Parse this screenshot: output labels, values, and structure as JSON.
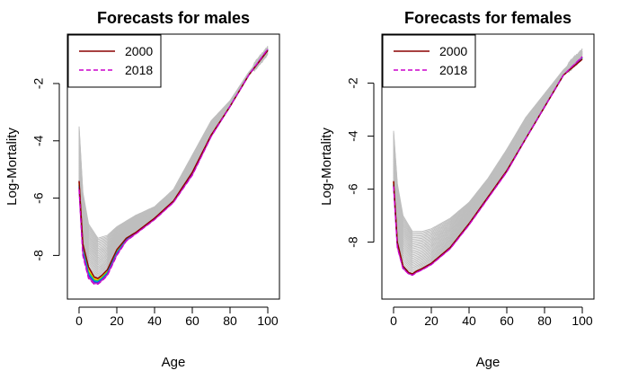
{
  "chart_data": [
    {
      "type": "line",
      "title": "Forecasts for males",
      "xlabel": "Age",
      "ylabel": "Log-Mortality",
      "xlim": [
        0,
        100
      ],
      "ylim": [
        -9.2,
        -0.6
      ],
      "xticks": [
        0,
        20,
        40,
        60,
        80,
        100
      ],
      "yticks": [
        -2,
        -4,
        -6,
        -8
      ],
      "grid": false,
      "legend": {
        "position": "top-left",
        "entries": [
          {
            "label": "2000",
            "color": "#8B0000",
            "dash": "solid"
          },
          {
            "label": "2018",
            "color": "#CC00CC",
            "dash": "dashed"
          }
        ]
      },
      "colors": {
        "history": "#BEBEBE"
      },
      "history_bands": {
        "note": "grey historical curves (earlier years, higher mortality at young ages)",
        "upper": {
          "x": [
            0,
            2,
            5,
            10,
            15,
            20,
            25,
            30,
            40,
            50,
            60,
            70,
            80,
            90,
            100
          ],
          "y": [
            -3.5,
            -5.8,
            -6.9,
            -7.4,
            -7.3,
            -7.0,
            -6.8,
            -6.6,
            -6.3,
            -5.7,
            -4.5,
            -3.3,
            -2.6,
            -1.6,
            -0.8
          ]
        },
        "lower": {
          "x": [
            0,
            2,
            5,
            10,
            15,
            20,
            25,
            30,
            40,
            50,
            60,
            70,
            80,
            90,
            100
          ],
          "y": [
            -5.4,
            -7.8,
            -8.5,
            -8.8,
            -8.5,
            -7.8,
            -7.4,
            -7.2,
            -6.7,
            -6.1,
            -5.1,
            -3.8,
            -2.8,
            -1.7,
            -0.9
          ]
        }
      },
      "series": [
        {
          "name": "2000",
          "x": [
            0,
            2,
            5,
            8,
            10,
            12,
            15,
            20,
            25,
            30,
            40,
            50,
            60,
            70,
            80,
            90,
            100
          ],
          "y": [
            -5.4,
            -7.6,
            -8.4,
            -8.75,
            -8.8,
            -8.7,
            -8.5,
            -7.8,
            -7.4,
            -7.2,
            -6.7,
            -6.1,
            -5.1,
            -3.8,
            -2.8,
            -1.7,
            -0.85
          ]
        },
        {
          "name": "2018",
          "x": [
            0,
            2,
            5,
            8,
            10,
            12,
            15,
            20,
            25,
            30,
            40,
            50,
            60,
            70,
            80,
            90,
            100
          ],
          "y": [
            -5.7,
            -8.0,
            -8.8,
            -9.0,
            -9.0,
            -8.9,
            -8.7,
            -8.0,
            -7.5,
            -7.25,
            -6.75,
            -6.15,
            -5.2,
            -3.85,
            -2.8,
            -1.7,
            -0.8
          ]
        }
      ]
    },
    {
      "type": "line",
      "title": "Forecasts for females",
      "xlabel": "Age",
      "ylabel": "Log-Mortality",
      "xlim": [
        0,
        100
      ],
      "ylim": [
        -9.8,
        -0.5
      ],
      "xticks": [
        0,
        20,
        40,
        60,
        80,
        100
      ],
      "yticks": [
        -2,
        -4,
        -6,
        -8
      ],
      "grid": false,
      "legend": {
        "position": "top-left",
        "entries": [
          {
            "label": "2000",
            "color": "#8B0000",
            "dash": "solid"
          },
          {
            "label": "2018",
            "color": "#CC00CC",
            "dash": "dashed"
          }
        ]
      },
      "colors": {
        "history": "#BEBEBE"
      },
      "history_bands": {
        "note": "grey historical curves (earlier years, higher mortality at young ages)",
        "upper": {
          "x": [
            0,
            2,
            5,
            10,
            15,
            20,
            25,
            30,
            40,
            50,
            60,
            70,
            80,
            90,
            100
          ],
          "y": [
            -3.8,
            -5.8,
            -7.0,
            -7.6,
            -7.6,
            -7.5,
            -7.3,
            -7.1,
            -6.5,
            -5.6,
            -4.5,
            -3.3,
            -2.4,
            -1.5,
            -0.8
          ]
        },
        "lower": {
          "x": [
            0,
            2,
            5,
            10,
            15,
            20,
            25,
            30,
            40,
            50,
            60,
            70,
            80,
            90,
            100
          ],
          "y": [
            -5.6,
            -8.0,
            -8.9,
            -9.2,
            -9.0,
            -8.8,
            -8.5,
            -8.2,
            -7.3,
            -6.3,
            -5.3,
            -4.1,
            -2.9,
            -1.7,
            -1.0
          ]
        }
      },
      "series": [
        {
          "name": "2000",
          "x": [
            0,
            2,
            5,
            8,
            10,
            12,
            15,
            20,
            25,
            30,
            40,
            50,
            60,
            70,
            80,
            90,
            100
          ],
          "y": [
            -5.7,
            -8.0,
            -8.9,
            -9.15,
            -9.2,
            -9.1,
            -9.0,
            -8.8,
            -8.5,
            -8.2,
            -7.3,
            -6.3,
            -5.3,
            -4.1,
            -2.9,
            -1.7,
            -1.1
          ]
        },
        {
          "name": "2018",
          "x": [
            0,
            2,
            5,
            8,
            10,
            12,
            15,
            20,
            25,
            30,
            40,
            50,
            60,
            70,
            80,
            90,
            100
          ],
          "y": [
            -5.9,
            -8.2,
            -9.0,
            -9.2,
            -9.25,
            -9.15,
            -9.05,
            -8.85,
            -8.55,
            -8.25,
            -7.35,
            -6.35,
            -5.35,
            -4.1,
            -2.9,
            -1.7,
            -1.0
          ]
        }
      ]
    }
  ]
}
